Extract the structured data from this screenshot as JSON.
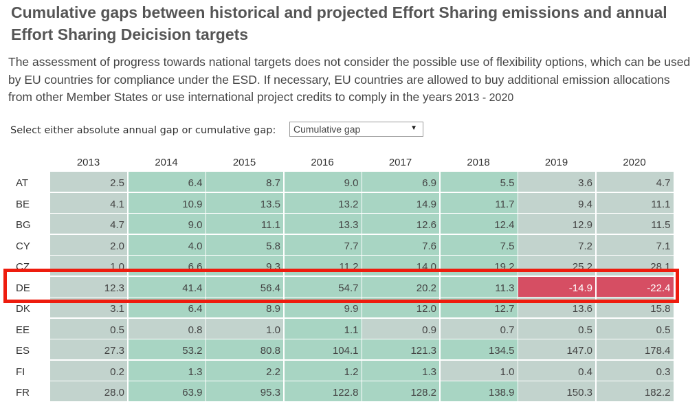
{
  "title": "Cumulative gaps between historical and projected Effort Sharing emissions and annual Effort Sharing Deicision targets",
  "description": "The assessment of progress towards national targets does not consider the possible use of flexibility options, which can be used by EU countries for compliance under the ESD. If necessary, EU countries are allowed to buy additional emission allocations from other Member States or use international project credits to comply in the years",
  "years_range": "2013 - 2020",
  "selector": {
    "label": "Select either absolute annual gap or cumulative gap:",
    "value": "Cumulative gap"
  },
  "years": [
    "2013",
    "2014",
    "2015",
    "2016",
    "2017",
    "2018",
    "2019",
    "2020"
  ],
  "colors": {
    "green": "#a8d5c3",
    "greenMid": "#b5d5c9",
    "grey": "#c2d3cd",
    "red": "#d64e63"
  },
  "rows": [
    {
      "code": "AT",
      "values": [
        "2.5",
        "6.4",
        "8.7",
        "9.0",
        "6.9",
        "5.5",
        "3.6",
        "4.7"
      ]
    },
    {
      "code": "BE",
      "values": [
        "4.1",
        "10.9",
        "13.5",
        "13.2",
        "14.9",
        "11.7",
        "9.4",
        "11.1"
      ]
    },
    {
      "code": "BG",
      "values": [
        "4.7",
        "9.0",
        "11.1",
        "13.3",
        "12.6",
        "12.4",
        "12.9",
        "11.5"
      ]
    },
    {
      "code": "CY",
      "values": [
        "2.0",
        "4.0",
        "5.8",
        "7.7",
        "7.6",
        "7.5",
        "7.2",
        "7.1"
      ]
    },
    {
      "code": "CZ",
      "values": [
        "1.0",
        "6.6",
        "9.3",
        "11.2",
        "14.0",
        "19.2",
        "25.2",
        "28.1"
      ]
    },
    {
      "code": "DE",
      "values": [
        "12.3",
        "41.4",
        "56.4",
        "54.7",
        "20.2",
        "11.3",
        "-14.9",
        "-22.4"
      ]
    },
    {
      "code": "DK",
      "values": [
        "3.1",
        "6.4",
        "8.9",
        "9.9",
        "12.0",
        "12.7",
        "13.6",
        "15.8"
      ]
    },
    {
      "code": "EE",
      "values": [
        "0.5",
        "0.8",
        "1.0",
        "1.1",
        "0.9",
        "0.7",
        "0.5",
        "0.5"
      ]
    },
    {
      "code": "ES",
      "values": [
        "27.3",
        "53.2",
        "80.8",
        "104.1",
        "121.3",
        "134.5",
        "147.0",
        "178.4"
      ]
    },
    {
      "code": "FI",
      "values": [
        "0.2",
        "1.3",
        "2.2",
        "1.2",
        "1.3",
        "1.0",
        "0.4",
        "0.3"
      ]
    },
    {
      "code": "FR",
      "values": [
        "28.0",
        "63.9",
        "95.3",
        "122.8",
        "128.2",
        "138.9",
        "150.3",
        "182.2"
      ]
    }
  ]
}
